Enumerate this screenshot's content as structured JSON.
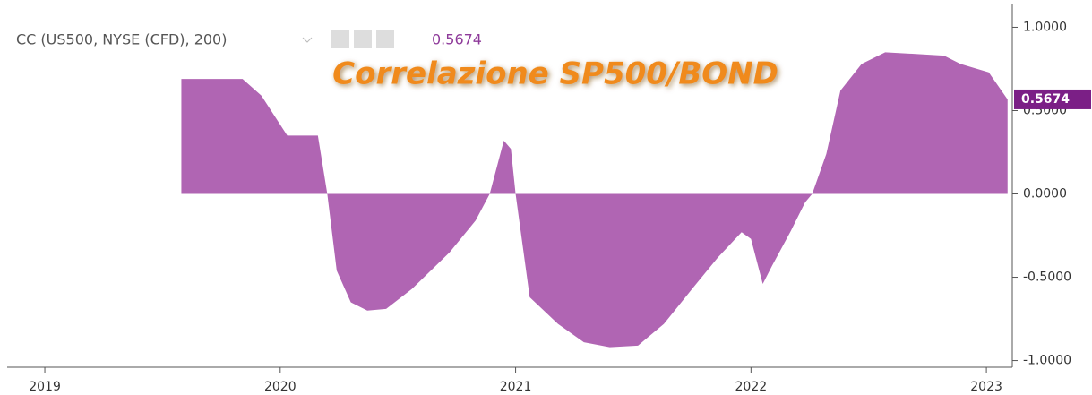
{
  "chart_data": {
    "type": "area",
    "legend_label": "CC (US500, NYSE (CFD), 200)",
    "annotation": "Correlazione SP500/BOND",
    "series": [
      {
        "name": "CC",
        "color": "#b065b3",
        "x": [
          2019.58,
          2019.84,
          2019.92,
          2020.03,
          2020.11,
          2020.16,
          2020.2,
          2020.24,
          2020.3,
          2020.37,
          2020.45,
          2020.56,
          2020.72,
          2020.83,
          2020.89,
          2020.95,
          2020.98,
          2021.0,
          2021.06,
          2021.18,
          2021.29,
          2021.4,
          2021.52,
          2021.63,
          2021.75,
          2021.86,
          2021.96,
          2022.0,
          2022.05,
          2022.09,
          2022.17,
          2022.23,
          2022.26,
          2022.32,
          2022.38,
          2022.47,
          2022.57,
          2022.7,
          2022.82,
          2022.89,
          2023.01,
          2023.09
        ],
        "values": [
          0.69,
          0.69,
          0.59,
          0.35,
          0.35,
          0.35,
          0.0,
          -0.46,
          -0.65,
          -0.7,
          -0.69,
          -0.57,
          -0.35,
          -0.16,
          0.0,
          0.32,
          0.27,
          0.0,
          -0.62,
          -0.78,
          -0.89,
          -0.92,
          -0.91,
          -0.78,
          -0.57,
          -0.38,
          -0.23,
          -0.27,
          -0.54,
          -0.43,
          -0.22,
          -0.05,
          0.0,
          0.24,
          0.62,
          0.78,
          0.85,
          0.84,
          0.83,
          0.78,
          0.73,
          0.5674
        ]
      }
    ],
    "xlim": [
      2018.84,
      2023.11
    ],
    "xticks": [
      2019,
      2020,
      2021,
      2022,
      2023
    ],
    "ylim": [
      -1.04,
      1.11
    ],
    "yticks": [
      {
        "value": 1,
        "label": "1.0000"
      },
      {
        "value": 0.5,
        "label": "0.5000"
      },
      {
        "value": 0,
        "label": "0.0000"
      },
      {
        "value": -0.5,
        "label": "-0.5000"
      },
      {
        "value": -1,
        "label": "-1.0000"
      }
    ]
  }
}
